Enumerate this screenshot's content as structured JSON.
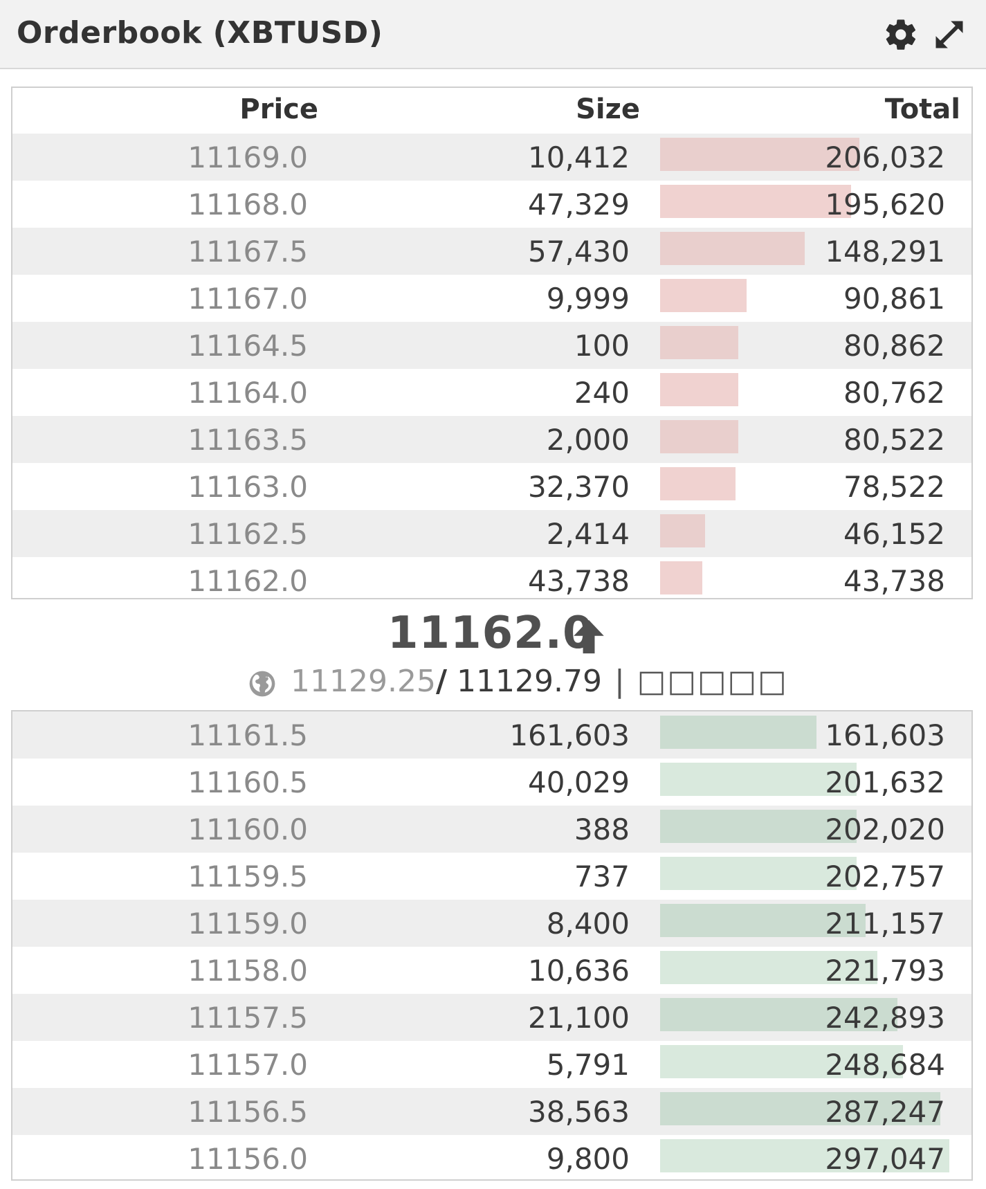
{
  "header": {
    "title": "Orderbook (XBTUSD)",
    "icons": [
      "gear-icon",
      "expand-icon"
    ]
  },
  "columns": {
    "price": "Price",
    "size": "Size",
    "total": "Total"
  },
  "asks": [
    {
      "price": "11169.0",
      "size": "10,412",
      "total": "206,032",
      "depth": 0.69
    },
    {
      "price": "11168.0",
      "size": "47,329",
      "total": "195,620",
      "depth": 0.66
    },
    {
      "price": "11167.5",
      "size": "57,430",
      "total": "148,291",
      "depth": 0.5
    },
    {
      "price": "11167.0",
      "size": "9,999",
      "total": "90,861",
      "depth": 0.3
    },
    {
      "price": "11164.5",
      "size": "100",
      "total": "80,862",
      "depth": 0.27
    },
    {
      "price": "11164.0",
      "size": "240",
      "total": "80,762",
      "depth": 0.27
    },
    {
      "price": "11163.5",
      "size": "2,000",
      "total": "80,522",
      "depth": 0.27
    },
    {
      "price": "11163.0",
      "size": "32,370",
      "total": "78,522",
      "depth": 0.26
    },
    {
      "price": "11162.5",
      "size": "2,414",
      "total": "46,152",
      "depth": 0.155
    },
    {
      "price": "11162.0",
      "size": "43,738",
      "total": "43,738",
      "depth": 0.145
    }
  ],
  "mid": {
    "last_price": "11162.0",
    "direction": "up",
    "index_price": "11129.25",
    "separator": "/",
    "fair_price": "11129.79",
    "trailing_text": "| □□□□□",
    "icon": "globe-icon"
  },
  "bids": [
    {
      "price": "11161.5",
      "size": "161,603",
      "total": "161,603",
      "depth": 0.54
    },
    {
      "price": "11160.5",
      "size": "40,029",
      "total": "201,632",
      "depth": 0.68
    },
    {
      "price": "11160.0",
      "size": "388",
      "total": "202,020",
      "depth": 0.68
    },
    {
      "price": "11159.5",
      "size": "737",
      "total": "202,757",
      "depth": 0.68
    },
    {
      "price": "11159.0",
      "size": "8,400",
      "total": "211,157",
      "depth": 0.71
    },
    {
      "price": "11158.0",
      "size": "10,636",
      "total": "221,793",
      "depth": 0.75
    },
    {
      "price": "11157.5",
      "size": "21,100",
      "total": "242,893",
      "depth": 0.82
    },
    {
      "price": "11157.0",
      "size": "5,791",
      "total": "248,684",
      "depth": 0.84
    },
    {
      "price": "11156.5",
      "size": "38,563",
      "total": "287,247",
      "depth": 0.97
    },
    {
      "price": "11156.0",
      "size": "9,800",
      "total": "297,047",
      "depth": 1.0
    }
  ],
  "colors": {
    "ask_bar": "#f0d2d0",
    "bid_bar": "#d9e9dd",
    "row_alt": "#eeeeee"
  }
}
